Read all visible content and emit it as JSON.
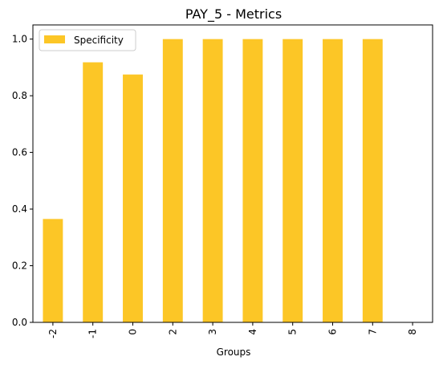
{
  "chart_data": {
    "type": "bar",
    "title": "PAY_5 - Metrics",
    "xlabel": "Groups",
    "ylabel": "",
    "categories": [
      "-2",
      "-1",
      "0",
      "2",
      "3",
      "4",
      "5",
      "6",
      "7",
      "8"
    ],
    "series": [
      {
        "name": "Specificity",
        "values": [
          0.365,
          0.918,
          0.875,
          1.0,
          1.0,
          1.0,
          1.0,
          1.0,
          1.0,
          0.0
        ],
        "color": "#fcc626"
      }
    ],
    "ylim": [
      0,
      1.05
    ],
    "yticks": [
      "0.0",
      "0.2",
      "0.4",
      "0.6",
      "0.8",
      "1.0"
    ],
    "ytick_values": [
      0,
      0.2,
      0.4,
      0.6,
      0.8,
      1.0
    ],
    "grid": false,
    "legend_position": "upper-left"
  }
}
